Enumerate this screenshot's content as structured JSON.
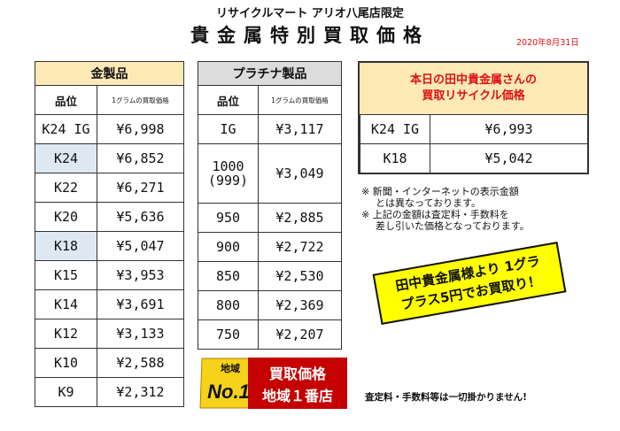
{
  "header": {
    "store": "リサイクルマート アリオ八尾店限定",
    "title": "貴金属特別買取価格",
    "date": "2020年8月31日"
  },
  "gold": {
    "title": "金製品",
    "col_grade": "品位",
    "col_price": "1グラムの買取価格",
    "rows": [
      {
        "grade": "K24 IG",
        "price": "¥6,998"
      },
      {
        "grade": "K24",
        "price": "¥6,852"
      },
      {
        "grade": "K22",
        "price": "¥6,271"
      },
      {
        "grade": "K20",
        "price": "¥5,636"
      },
      {
        "grade": "K18",
        "price": "¥5,047"
      },
      {
        "grade": "K15",
        "price": "¥3,953"
      },
      {
        "grade": "K14",
        "price": "¥3,691"
      },
      {
        "grade": "K12",
        "price": "¥3,133"
      },
      {
        "grade": "K10",
        "price": "¥2,588"
      },
      {
        "grade": "K9",
        "price": "¥2,312"
      }
    ]
  },
  "platinum": {
    "title": "プラチナ製品",
    "col_grade": "品位",
    "col_price": "1グラムの買取価格",
    "rows": [
      {
        "grade": "IG",
        "price": "¥3,117"
      },
      {
        "grade": "1000",
        "grade2": "(999)",
        "price": "¥3,049"
      },
      {
        "grade": "950",
        "price": "¥2,885"
      },
      {
        "grade": "900",
        "price": "¥2,722"
      },
      {
        "grade": "850",
        "price": "¥2,530"
      },
      {
        "grade": "800",
        "price": "¥2,369"
      },
      {
        "grade": "750",
        "price": "¥2,207"
      }
    ]
  },
  "tanaka": {
    "line1": "本日の田中貴金属さんの",
    "line2": "買取リサイクル価格",
    "rows": [
      {
        "grade": "K24 IG",
        "price": "¥6,993"
      },
      {
        "grade": "K18",
        "price": "¥5,042"
      }
    ]
  },
  "notes": {
    "n1a": "※ 新聞・インターネットの表示金額",
    "n1b": "とは異なっております。",
    "n2a": "※ 上記の金額は査定料・手数料を",
    "n2b": "差し引いた価格となっております。"
  },
  "banner": {
    "line1": "田中貴金属様より 1グラ",
    "line2": "プラス5円でお買取り！"
  },
  "badge": {
    "area": "地域",
    "no1": "No.1",
    "line1": "買取価格",
    "line2": "地域１番店"
  },
  "footer": "査定料・手数料等は一切掛かりません!",
  "colors": {
    "gold_header": "#fde9b6",
    "platinum_header": "#dcdcdc",
    "highlight": "#dde8f3",
    "accent_red": "#d11",
    "banner_yellow": "#ffff00"
  }
}
